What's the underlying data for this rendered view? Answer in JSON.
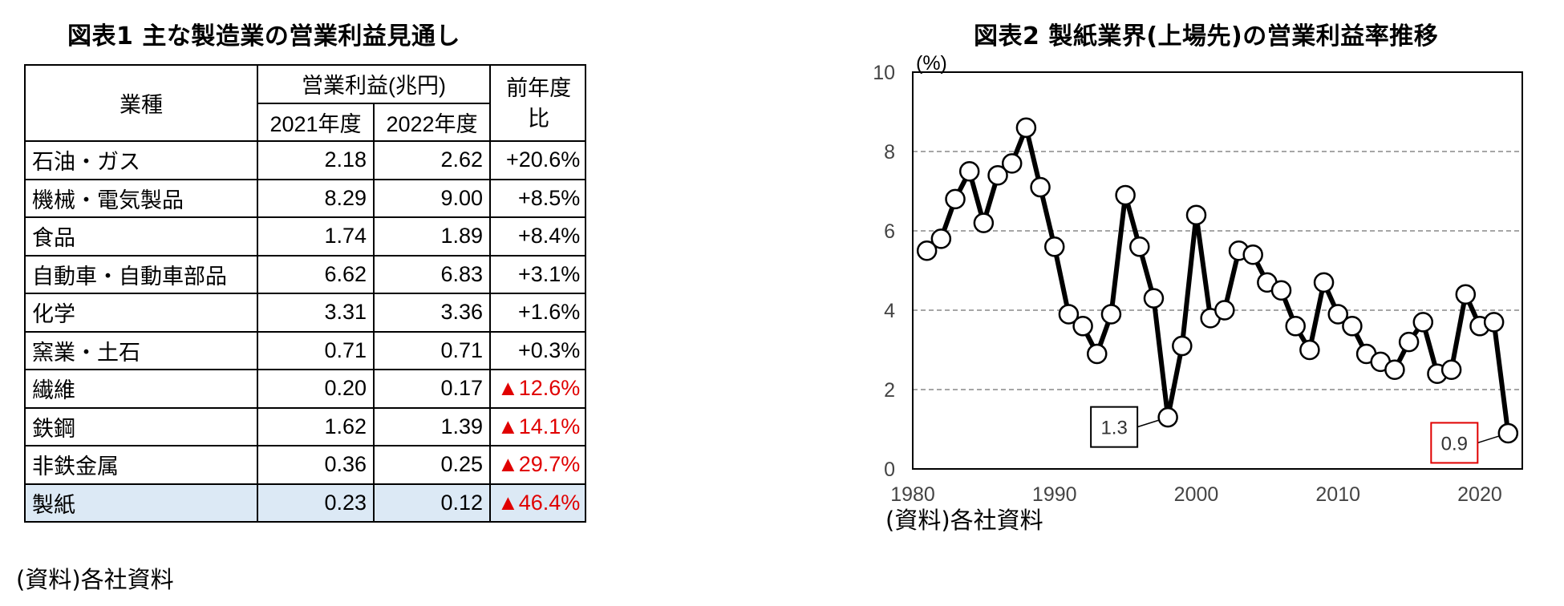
{
  "table_title": "図表1  主な製造業の営業利益見通し",
  "table": {
    "headers": {
      "industry": "業種",
      "profit_group": "営業利益(兆円)",
      "fy2021": "2021年度",
      "fy2022": "2022年度",
      "yoy": "前年度比"
    },
    "rows": [
      {
        "industry": "石油・ガス",
        "fy2021": "2.18",
        "fy2022": "2.62",
        "yoy": "+20.6%"
      },
      {
        "industry": "機械・電気製品",
        "fy2021": "8.29",
        "fy2022": "9.00",
        "yoy": "+8.5%"
      },
      {
        "industry": "食品",
        "fy2021": "1.74",
        "fy2022": "1.89",
        "yoy": "+8.4%"
      },
      {
        "industry": "自動車・自動車部品",
        "fy2021": "6.62",
        "fy2022": "6.83",
        "yoy": "+3.1%"
      },
      {
        "industry": "化学",
        "fy2021": "3.31",
        "fy2022": "3.36",
        "yoy": "+1.6%"
      },
      {
        "industry": "窯業・土石",
        "fy2021": "0.71",
        "fy2022": "0.71",
        "yoy": "+0.3%"
      },
      {
        "industry": "繊維",
        "fy2021": "0.20",
        "fy2022": "0.17",
        "yoy": "▲12.6%"
      },
      {
        "industry": "鉄鋼",
        "fy2021": "1.62",
        "fy2022": "1.39",
        "yoy": "▲14.1%"
      },
      {
        "industry": "非鉄金属",
        "fy2021": "0.36",
        "fy2022": "0.25",
        "yoy": "▲29.7%"
      },
      {
        "industry": "製紙",
        "fy2021": "0.23",
        "fy2022": "0.12",
        "yoy": "▲46.4%"
      }
    ],
    "source": "(資料)各社資料"
  },
  "chart_data": {
    "type": "line",
    "title": "図表2  製紙業界(上場先)の営業利益率推移",
    "ylabel": "(%)",
    "xlabel": "",
    "x": [
      1981,
      1982,
      1983,
      1984,
      1985,
      1986,
      1987,
      1988,
      1989,
      1990,
      1991,
      1992,
      1993,
      1994,
      1995,
      1996,
      1997,
      1998,
      1999,
      2000,
      2001,
      2002,
      2003,
      2004,
      2005,
      2006,
      2007,
      2008,
      2009,
      2010,
      2011,
      2012,
      2013,
      2014,
      2015,
      2016,
      2017,
      2018,
      2019,
      2020,
      2021,
      2022
    ],
    "values": [
      5.5,
      5.8,
      6.8,
      7.5,
      6.2,
      7.4,
      7.7,
      8.6,
      7.1,
      5.6,
      3.9,
      3.6,
      2.9,
      3.9,
      6.9,
      5.6,
      4.3,
      1.3,
      3.1,
      6.4,
      3.8,
      4.0,
      5.5,
      5.4,
      4.7,
      4.5,
      3.6,
      3.0,
      4.7,
      3.9,
      3.6,
      2.9,
      2.7,
      2.5,
      3.2,
      3.7,
      2.4,
      2.5,
      4.4,
      3.6,
      3.7,
      0.9
    ],
    "xlim": [
      1980,
      2023
    ],
    "ylim": [
      0,
      10
    ],
    "x_ticks": [
      1980,
      1990,
      2000,
      2010,
      2020
    ],
    "y_ticks": [
      0,
      2,
      4,
      6,
      8,
      10
    ],
    "grid": "horizontal-dashed",
    "annotations": [
      {
        "x": 1998,
        "y": 1.3,
        "text": "1.3",
        "color": "#000000"
      },
      {
        "x": 2022,
        "y": 0.9,
        "text": "0.9",
        "color": "#e00000"
      }
    ],
    "source": "(資料)各社資料"
  }
}
